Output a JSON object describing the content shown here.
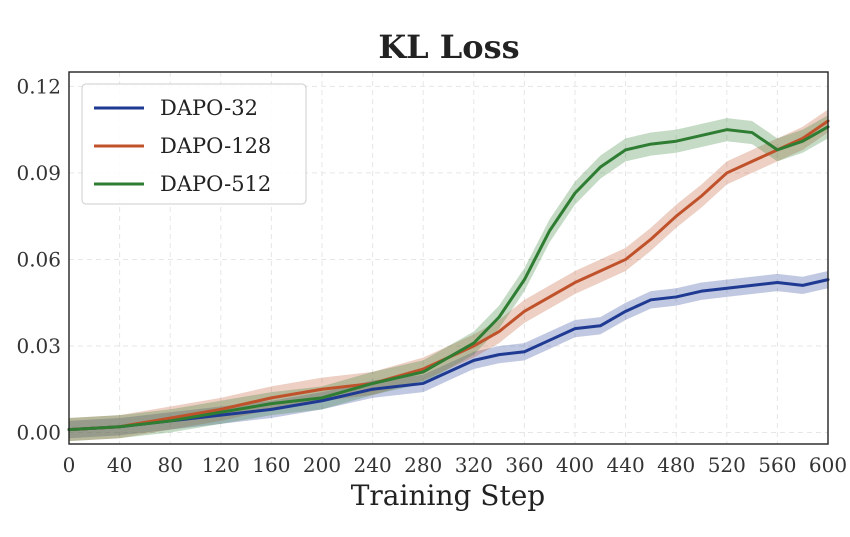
{
  "chart_data": {
    "type": "line",
    "title": "KL Loss",
    "xlabel": "Training Step",
    "ylabel": "",
    "xlim": [
      0,
      600
    ],
    "ylim": [
      -0.004,
      0.125
    ],
    "xticks": [
      0,
      40,
      80,
      120,
      160,
      200,
      240,
      280,
      320,
      360,
      400,
      440,
      480,
      520,
      560,
      600
    ],
    "xtick_labels": [
      "0",
      "40",
      "80",
      "120",
      "160",
      "200",
      "240",
      "280",
      "320",
      "360",
      "400",
      "440",
      "480",
      "520",
      "560",
      "600"
    ],
    "yticks": [
      0,
      0.03,
      0.06,
      0.09,
      0.12
    ],
    "ytick_labels": [
      "0.00",
      "0.03",
      "0.06",
      "0.09",
      "0.12"
    ],
    "grid": true,
    "legend_position": "top-left",
    "series": [
      {
        "name": "DAPO-32",
        "color": "#1f3a93",
        "x": [
          0,
          40,
          80,
          120,
          160,
          200,
          240,
          280,
          300,
          320,
          340,
          360,
          380,
          400,
          420,
          440,
          460,
          480,
          500,
          520,
          540,
          560,
          580,
          600
        ],
        "y": [
          0.001,
          0.002,
          0.004,
          0.006,
          0.008,
          0.011,
          0.015,
          0.017,
          0.021,
          0.025,
          0.027,
          0.028,
          0.032,
          0.036,
          0.037,
          0.042,
          0.046,
          0.047,
          0.049,
          0.05,
          0.051,
          0.052,
          0.051,
          0.053
        ],
        "band": 0.003
      },
      {
        "name": "DAPO-128",
        "color": "#c0522b",
        "x": [
          0,
          40,
          80,
          120,
          160,
          200,
          240,
          280,
          300,
          320,
          340,
          360,
          380,
          400,
          420,
          440,
          460,
          480,
          500,
          520,
          540,
          560,
          580,
          600
        ],
        "y": [
          0.001,
          0.002,
          0.005,
          0.008,
          0.012,
          0.015,
          0.017,
          0.022,
          0.026,
          0.03,
          0.035,
          0.042,
          0.047,
          0.052,
          0.056,
          0.06,
          0.067,
          0.075,
          0.082,
          0.09,
          0.094,
          0.098,
          0.102,
          0.108
        ],
        "band": 0.004
      },
      {
        "name": "DAPO-512",
        "color": "#2e7d32",
        "x": [
          0,
          40,
          80,
          120,
          160,
          200,
          240,
          280,
          300,
          320,
          340,
          360,
          380,
          400,
          420,
          440,
          460,
          480,
          500,
          520,
          540,
          560,
          580,
          600
        ],
        "y": [
          0.001,
          0.002,
          0.004,
          0.007,
          0.01,
          0.012,
          0.017,
          0.021,
          0.026,
          0.031,
          0.04,
          0.053,
          0.07,
          0.083,
          0.092,
          0.098,
          0.1,
          0.101,
          0.103,
          0.105,
          0.104,
          0.098,
          0.101,
          0.106
        ],
        "band": 0.004
      }
    ]
  }
}
